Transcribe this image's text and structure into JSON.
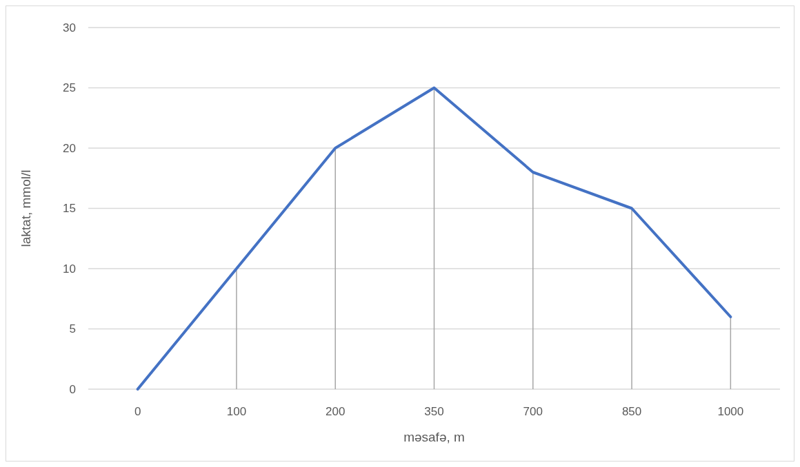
{
  "chart_data": {
    "type": "line",
    "xlabel": "məsafə, m",
    "ylabel": "laktat, mmol/l",
    "categories": [
      "0",
      "100",
      "200",
      "350",
      "700",
      "850",
      "1000"
    ],
    "series": [
      {
        "color": "#4472c4",
        "values": [
          0,
          10,
          20,
          25,
          18,
          15,
          6
        ],
        "errors": [
          null,
          [
            0,
            10
          ],
          [
            0,
            20
          ],
          [
            0,
            25
          ],
          [
            0,
            18
          ],
          [
            0,
            15
          ],
          [
            0,
            6
          ]
        ]
      }
    ],
    "ylim": [
      0,
      30
    ],
    "yticks": [
      0,
      5,
      10,
      15,
      20,
      25,
      30
    ],
    "grid": "y",
    "marker": "none",
    "line_style": "solid"
  }
}
